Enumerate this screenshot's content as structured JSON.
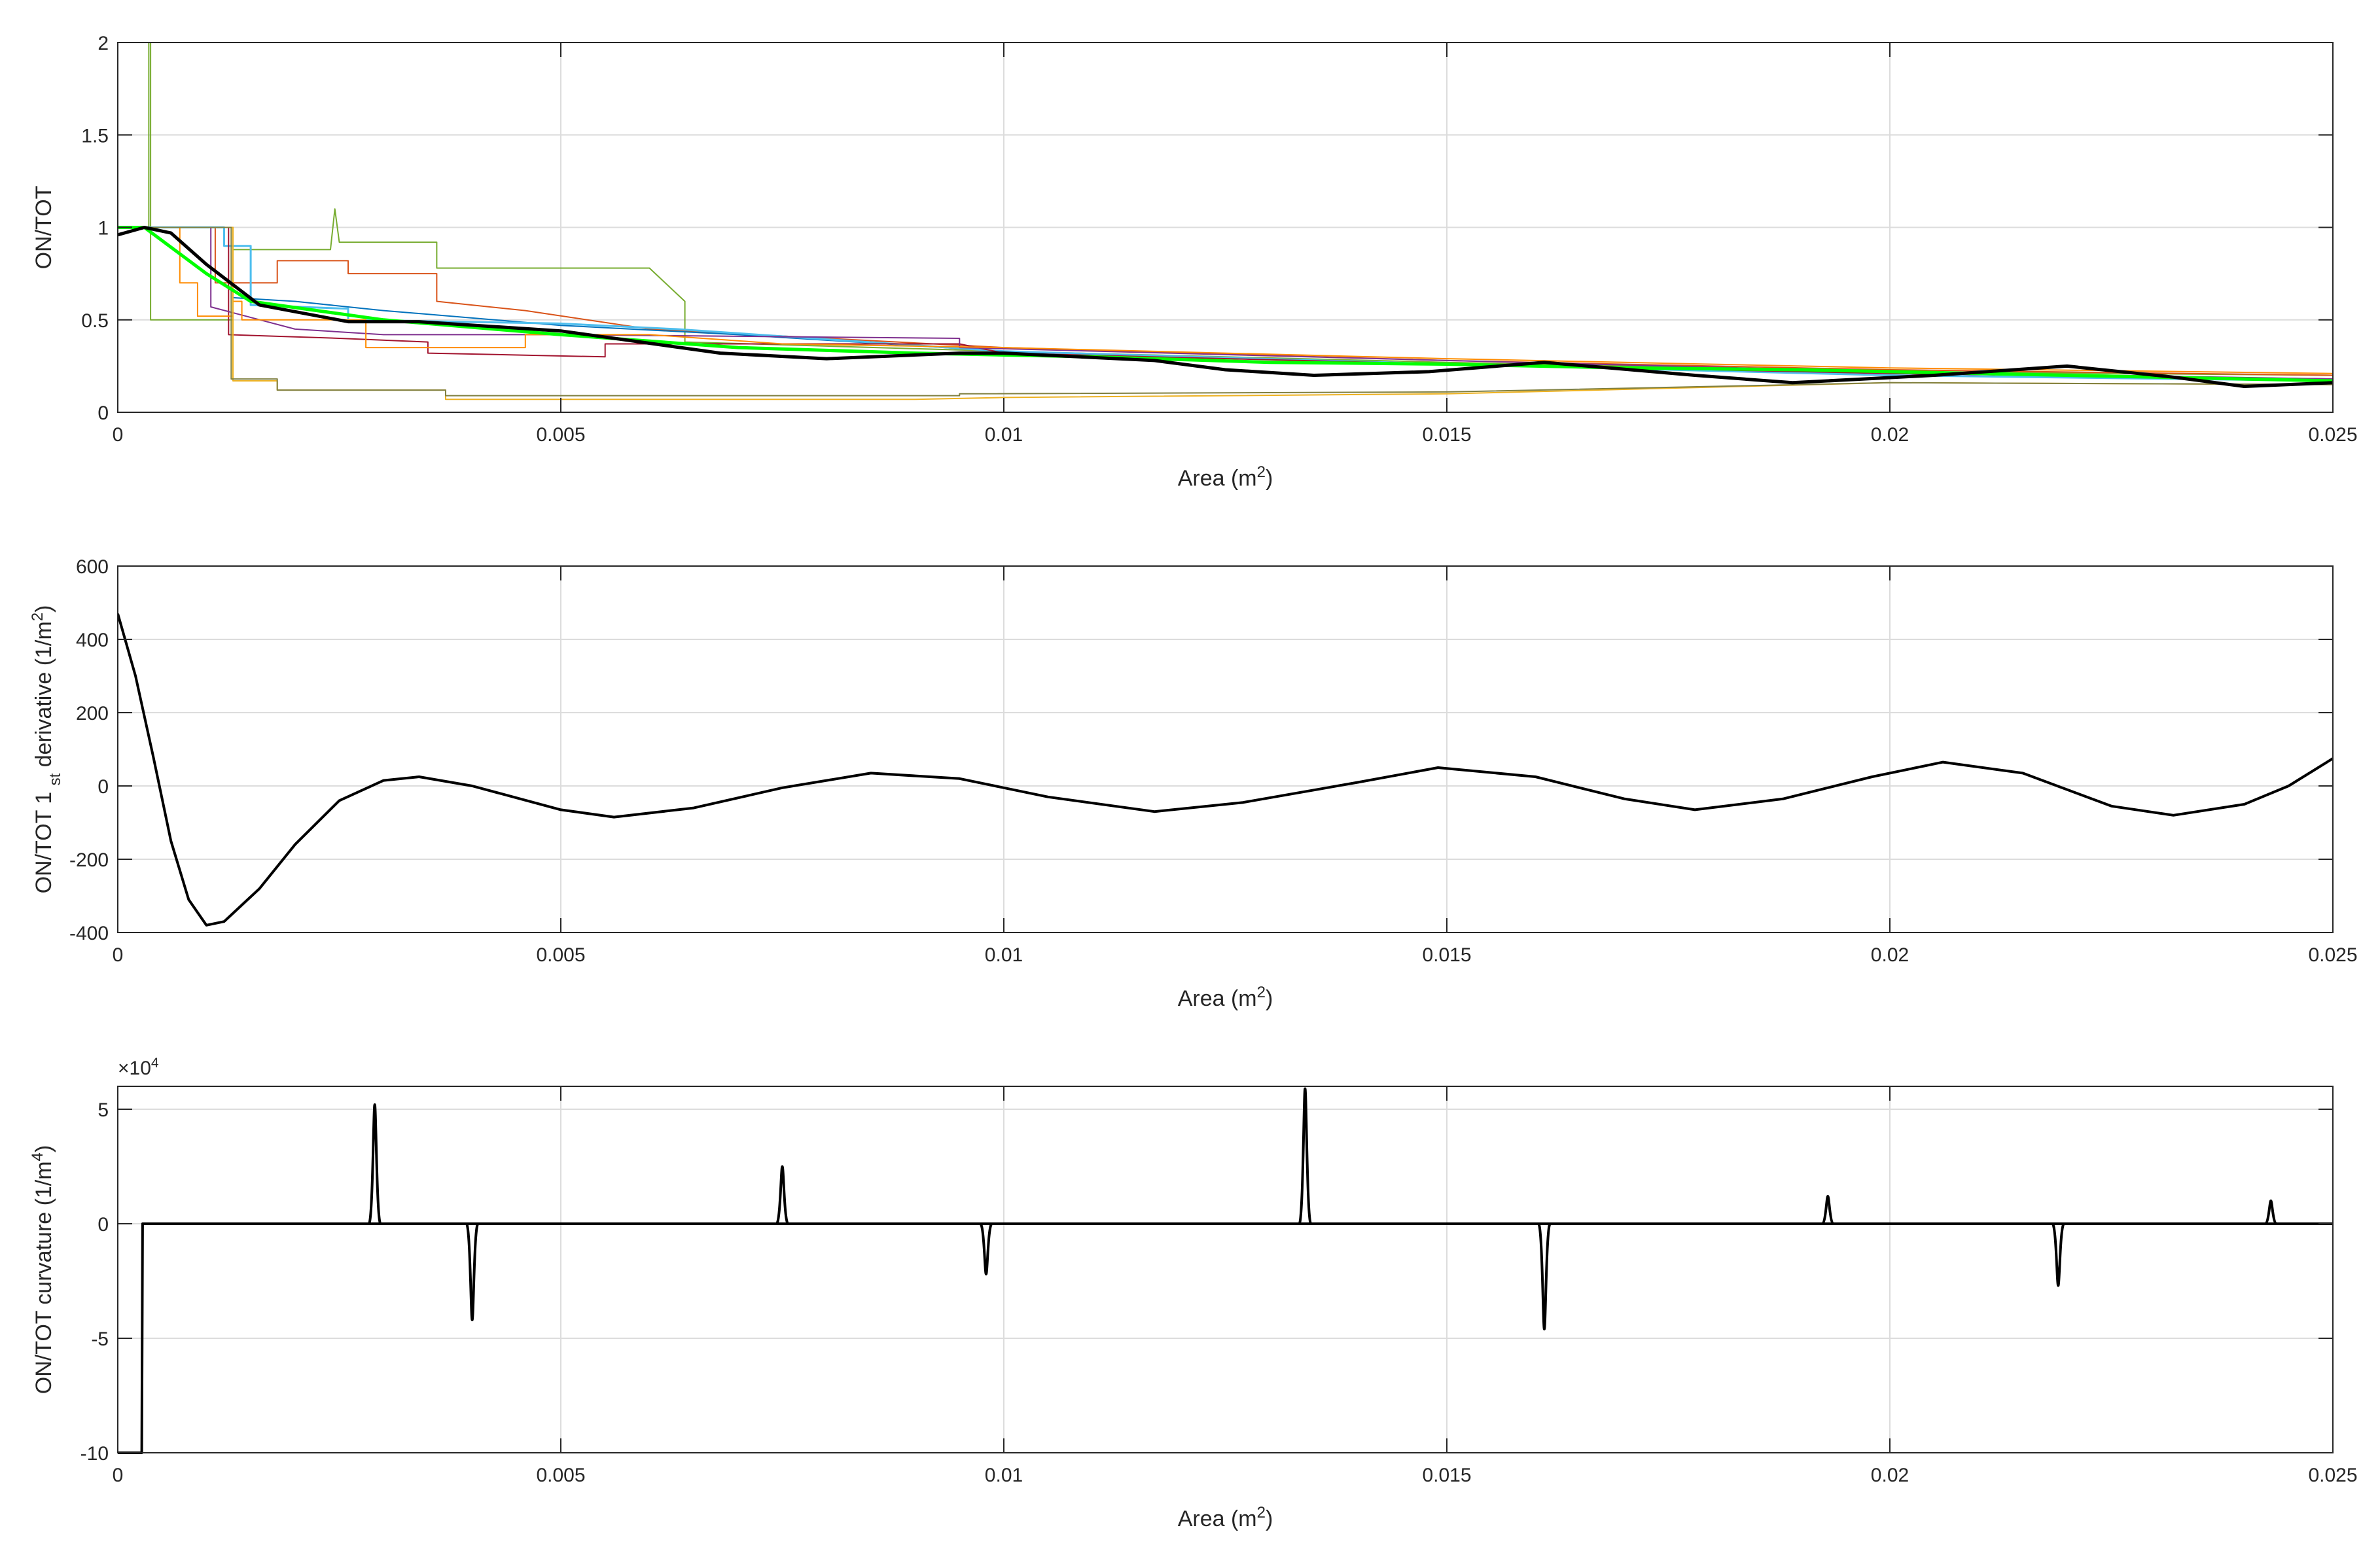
{
  "chart_data": [
    {
      "type": "line",
      "xlabel": "Area (m²)",
      "ylabel": "ON/TOT",
      "xlim": [
        0,
        0.025
      ],
      "ylim": [
        0,
        2
      ],
      "xticks": [
        0,
        0.005,
        0.01,
        0.015,
        0.02,
        0.025
      ],
      "xtick_labels": [
        "0",
        "0.005",
        "0.01",
        "0.015",
        "0.02",
        "0.025"
      ],
      "yticks": [
        0,
        0.5,
        1,
        1.5,
        2
      ],
      "ytick_labels": [
        "0",
        "0.5",
        "1",
        "1.5",
        "2"
      ],
      "grid": true,
      "series": [
        {
          "color": "#77ac30",
          "width": 2,
          "points": [
            [
              0,
              1
            ],
            [
              0.00035,
              1
            ],
            [
              0.00035,
              2
            ],
            [
              0.00037,
              2
            ],
            [
              0.00037,
              0.5
            ],
            [
              0.0013,
              0.5
            ],
            [
              0.0013,
              0.88
            ],
            [
              0.0024,
              0.88
            ],
            [
              0.00245,
              1.1
            ],
            [
              0.0025,
              0.92
            ],
            [
              0.0036,
              0.92
            ],
            [
              0.0036,
              0.78
            ],
            [
              0.006,
              0.78
            ],
            [
              0.0064,
              0.6
            ],
            [
              0.0064,
              0.38
            ],
            [
              0.01,
              0.33
            ],
            [
              0.015,
              0.27
            ],
            [
              0.02,
              0.22
            ],
            [
              0.025,
              0.2
            ]
          ]
        },
        {
          "color": "#d95319",
          "width": 2,
          "points": [
            [
              0,
              1
            ],
            [
              0.0011,
              1
            ],
            [
              0.0011,
              0.7
            ],
            [
              0.0018,
              0.7
            ],
            [
              0.0018,
              0.82
            ],
            [
              0.0026,
              0.82
            ],
            [
              0.0026,
              0.75
            ],
            [
              0.0036,
              0.75
            ],
            [
              0.0036,
              0.6
            ],
            [
              0.0046,
              0.55
            ],
            [
              0.006,
              0.45
            ],
            [
              0.01,
              0.35
            ],
            [
              0.015,
              0.28
            ],
            [
              0.02,
              0.23
            ],
            [
              0.025,
              0.2
            ]
          ]
        },
        {
          "color": "#0072bd",
          "width": 2,
          "points": [
            [
              0,
              1
            ],
            [
              0.0013,
              1
            ],
            [
              0.0013,
              0.62
            ],
            [
              0.002,
              0.6
            ],
            [
              0.003,
              0.55
            ],
            [
              0.005,
              0.47
            ],
            [
              0.007,
              0.42
            ],
            [
              0.01,
              0.33
            ],
            [
              0.015,
              0.26
            ],
            [
              0.02,
              0.21
            ],
            [
              0.025,
              0.18
            ]
          ]
        },
        {
          "color": "#4dbeee",
          "width": 3,
          "points": [
            [
              0,
              1
            ],
            [
              0.0012,
              1
            ],
            [
              0.0012,
              0.9
            ],
            [
              0.0015,
              0.9
            ],
            [
              0.0015,
              0.58
            ],
            [
              0.0026,
              0.56
            ],
            [
              0.0026,
              0.5
            ],
            [
              0.005,
              0.48
            ],
            [
              0.0063,
              0.45
            ],
            [
              0.01,
              0.33
            ],
            [
              0.015,
              0.26
            ],
            [
              0.02,
              0.2
            ],
            [
              0.025,
              0.17
            ]
          ]
        },
        {
          "color": "#a2142f",
          "width": 2,
          "points": [
            [
              0,
              1
            ],
            [
              0.00125,
              1
            ],
            [
              0.00125,
              0.42
            ],
            [
              0.0025,
              0.4
            ],
            [
              0.0035,
              0.38
            ],
            [
              0.0035,
              0.32
            ],
            [
              0.0055,
              0.3
            ],
            [
              0.0055,
              0.37
            ],
            [
              0.0095,
              0.37
            ],
            [
              0.01,
              0.32
            ],
            [
              0.015,
              0.26
            ],
            [
              0.02,
              0.21
            ],
            [
              0.025,
              0.18
            ]
          ]
        },
        {
          "color": "#7e2f8e",
          "width": 2,
          "points": [
            [
              0,
              1
            ],
            [
              0.00105,
              1
            ],
            [
              0.00105,
              0.57
            ],
            [
              0.002,
              0.45
            ],
            [
              0.003,
              0.42
            ],
            [
              0.005,
              0.42
            ],
            [
              0.0095,
              0.4
            ],
            [
              0.0095,
              0.35
            ],
            [
              0.015,
              0.28
            ],
            [
              0.02,
              0.22
            ],
            [
              0.025,
              0.18
            ]
          ]
        },
        {
          "color": "#ff8c00",
          "width": 2,
          "points": [
            [
              0,
              1
            ],
            [
              0.0007,
              1
            ],
            [
              0.0007,
              0.7
            ],
            [
              0.0009,
              0.7
            ],
            [
              0.0009,
              0.52
            ],
            [
              0.0013,
              0.52
            ],
            [
              0.0013,
              0.6
            ],
            [
              0.0014,
              0.6
            ],
            [
              0.0014,
              0.5
            ],
            [
              0.0028,
              0.5
            ],
            [
              0.0028,
              0.35
            ],
            [
              0.0046,
              0.35
            ],
            [
              0.0046,
              0.42
            ],
            [
              0.006,
              0.42
            ],
            [
              0.0075,
              0.37
            ],
            [
              0.01,
              0.35
            ],
            [
              0.015,
              0.29
            ],
            [
              0.02,
              0.24
            ],
            [
              0.025,
              0.21
            ]
          ]
        },
        {
          "color": "#edb120",
          "width": 2,
          "points": [
            [
              0,
              1
            ],
            [
              0.0013,
              1
            ],
            [
              0.0013,
              0.17
            ],
            [
              0.0018,
              0.17
            ],
            [
              0.0018,
              0.12
            ],
            [
              0.0037,
              0.12
            ],
            [
              0.0037,
              0.07
            ],
            [
              0.009,
              0.07
            ],
            [
              0.01,
              0.08
            ],
            [
              0.015,
              0.1
            ],
            [
              0.02,
              0.16
            ],
            [
              0.025,
              0.15
            ]
          ]
        },
        {
          "color": "#808040",
          "width": 2,
          "points": [
            [
              0,
              1
            ],
            [
              0.00128,
              1
            ],
            [
              0.00128,
              0.18
            ],
            [
              0.0018,
              0.18
            ],
            [
              0.0018,
              0.12
            ],
            [
              0.0037,
              0.12
            ],
            [
              0.0037,
              0.09
            ],
            [
              0.0095,
              0.09
            ],
            [
              0.0095,
              0.1
            ],
            [
              0.015,
              0.11
            ],
            [
              0.018,
              0.14
            ],
            [
              0.02,
              0.16
            ],
            [
              0.025,
              0.15
            ]
          ]
        },
        {
          "color": "#00ff00",
          "width": 5,
          "points": [
            [
              0,
              1
            ],
            [
              0.0003,
              1
            ],
            [
              0.001,
              0.75
            ],
            [
              0.0015,
              0.6
            ],
            [
              0.003,
              0.5
            ],
            [
              0.005,
              0.42
            ],
            [
              0.007,
              0.35
            ],
            [
              0.009,
              0.32
            ],
            [
              0.011,
              0.3
            ],
            [
              0.013,
              0.27
            ],
            [
              0.015,
              0.26
            ],
            [
              0.017,
              0.24
            ],
            [
              0.019,
              0.23
            ],
            [
              0.021,
              0.21
            ],
            [
              0.023,
              0.19
            ],
            [
              0.025,
              0.17
            ]
          ]
        },
        {
          "color": "#000000",
          "width": 5,
          "points": [
            [
              0,
              0.96
            ],
            [
              0.0003,
              1.0
            ],
            [
              0.0006,
              0.97
            ],
            [
              0.001,
              0.8
            ],
            [
              0.0016,
              0.58
            ],
            [
              0.0026,
              0.49
            ],
            [
              0.0034,
              0.49
            ],
            [
              0.005,
              0.44
            ],
            [
              0.0068,
              0.32
            ],
            [
              0.008,
              0.29
            ],
            [
              0.0095,
              0.32
            ],
            [
              0.01,
              0.32
            ],
            [
              0.0117,
              0.28
            ],
            [
              0.0125,
              0.23
            ],
            [
              0.0135,
              0.2
            ],
            [
              0.0148,
              0.22
            ],
            [
              0.0161,
              0.27
            ],
            [
              0.0178,
              0.2
            ],
            [
              0.0189,
              0.16
            ],
            [
              0.0205,
              0.2
            ],
            [
              0.022,
              0.25
            ],
            [
              0.0232,
              0.19
            ],
            [
              0.024,
              0.14
            ],
            [
              0.025,
              0.16
            ]
          ]
        }
      ]
    },
    {
      "type": "line",
      "xlabel": "Area (m²)",
      "ylabel": "ON/TOT 1st derivative (1/m²)",
      "xlim": [
        0,
        0.025
      ],
      "ylim": [
        -400,
        600
      ],
      "xticks": [
        0,
        0.005,
        0.01,
        0.015,
        0.02,
        0.025
      ],
      "xtick_labels": [
        "0",
        "0.005",
        "0.01",
        "0.015",
        "0.02",
        "0.025"
      ],
      "yticks": [
        -400,
        -200,
        0,
        200,
        400,
        600
      ],
      "ytick_labels": [
        "-400",
        "-200",
        "0",
        "200",
        "400",
        "600"
      ],
      "grid": true,
      "series": [
        {
          "color": "#000000",
          "width": 4,
          "points": [
            [
              0,
              470
            ],
            [
              0.0002,
              300
            ],
            [
              0.0004,
              80
            ],
            [
              0.0006,
              -150
            ],
            [
              0.0008,
              -310
            ],
            [
              0.001,
              -380
            ],
            [
              0.0012,
              -370
            ],
            [
              0.0016,
              -280
            ],
            [
              0.002,
              -160
            ],
            [
              0.0025,
              -40
            ],
            [
              0.003,
              15
            ],
            [
              0.0034,
              25
            ],
            [
              0.004,
              0
            ],
            [
              0.005,
              -65
            ],
            [
              0.0056,
              -85
            ],
            [
              0.0065,
              -60
            ],
            [
              0.0075,
              -5
            ],
            [
              0.0085,
              35
            ],
            [
              0.0095,
              20
            ],
            [
              0.0105,
              -30
            ],
            [
              0.0117,
              -70
            ],
            [
              0.0127,
              -45
            ],
            [
              0.014,
              10
            ],
            [
              0.0149,
              50
            ],
            [
              0.016,
              25
            ],
            [
              0.017,
              -35
            ],
            [
              0.0178,
              -65
            ],
            [
              0.0188,
              -35
            ],
            [
              0.0198,
              25
            ],
            [
              0.0206,
              65
            ],
            [
              0.0215,
              35
            ],
            [
              0.0225,
              -55
            ],
            [
              0.0232,
              -80
            ],
            [
              0.024,
              -50
            ],
            [
              0.0245,
              0
            ],
            [
              0.025,
              75
            ]
          ]
        }
      ]
    },
    {
      "type": "line",
      "xlabel": "Area (m²)",
      "ylabel": "ON/TOT curvature (1/m⁴)",
      "multiplier": "×10⁴",
      "xlim": [
        0,
        0.025
      ],
      "ylim": [
        -100000,
        60000
      ],
      "xticks": [
        0,
        0.005,
        0.01,
        0.015,
        0.02,
        0.025
      ],
      "xtick_labels": [
        "0",
        "0.005",
        "0.01",
        "0.015",
        "0.02",
        "0.025"
      ],
      "yticks": [
        -100000,
        -50000,
        0,
        50000
      ],
      "ytick_labels": [
        "-10",
        "-5",
        "0",
        "5"
      ],
      "grid": true,
      "spikes": [
        {
          "x": 0.0029,
          "y": 52000
        },
        {
          "x": 0.004,
          "y": -42000
        },
        {
          "x": 0.0075,
          "y": 25000
        },
        {
          "x": 0.0098,
          "y": -22000
        },
        {
          "x": 0.0134,
          "y": 59000
        },
        {
          "x": 0.0161,
          "y": -46000
        },
        {
          "x": 0.0193,
          "y": 12000
        },
        {
          "x": 0.0219,
          "y": -27000
        },
        {
          "x": 0.0243,
          "y": 10000
        }
      ],
      "series": [
        {
          "color": "#000000",
          "width": 4,
          "points": [
            [
              0,
              -100000
            ],
            [
              0.00025,
              -100000
            ],
            [
              0.00027,
              -100000
            ],
            [
              0.00028,
              0
            ],
            [
              0.025,
              0
            ]
          ]
        }
      ]
    }
  ]
}
